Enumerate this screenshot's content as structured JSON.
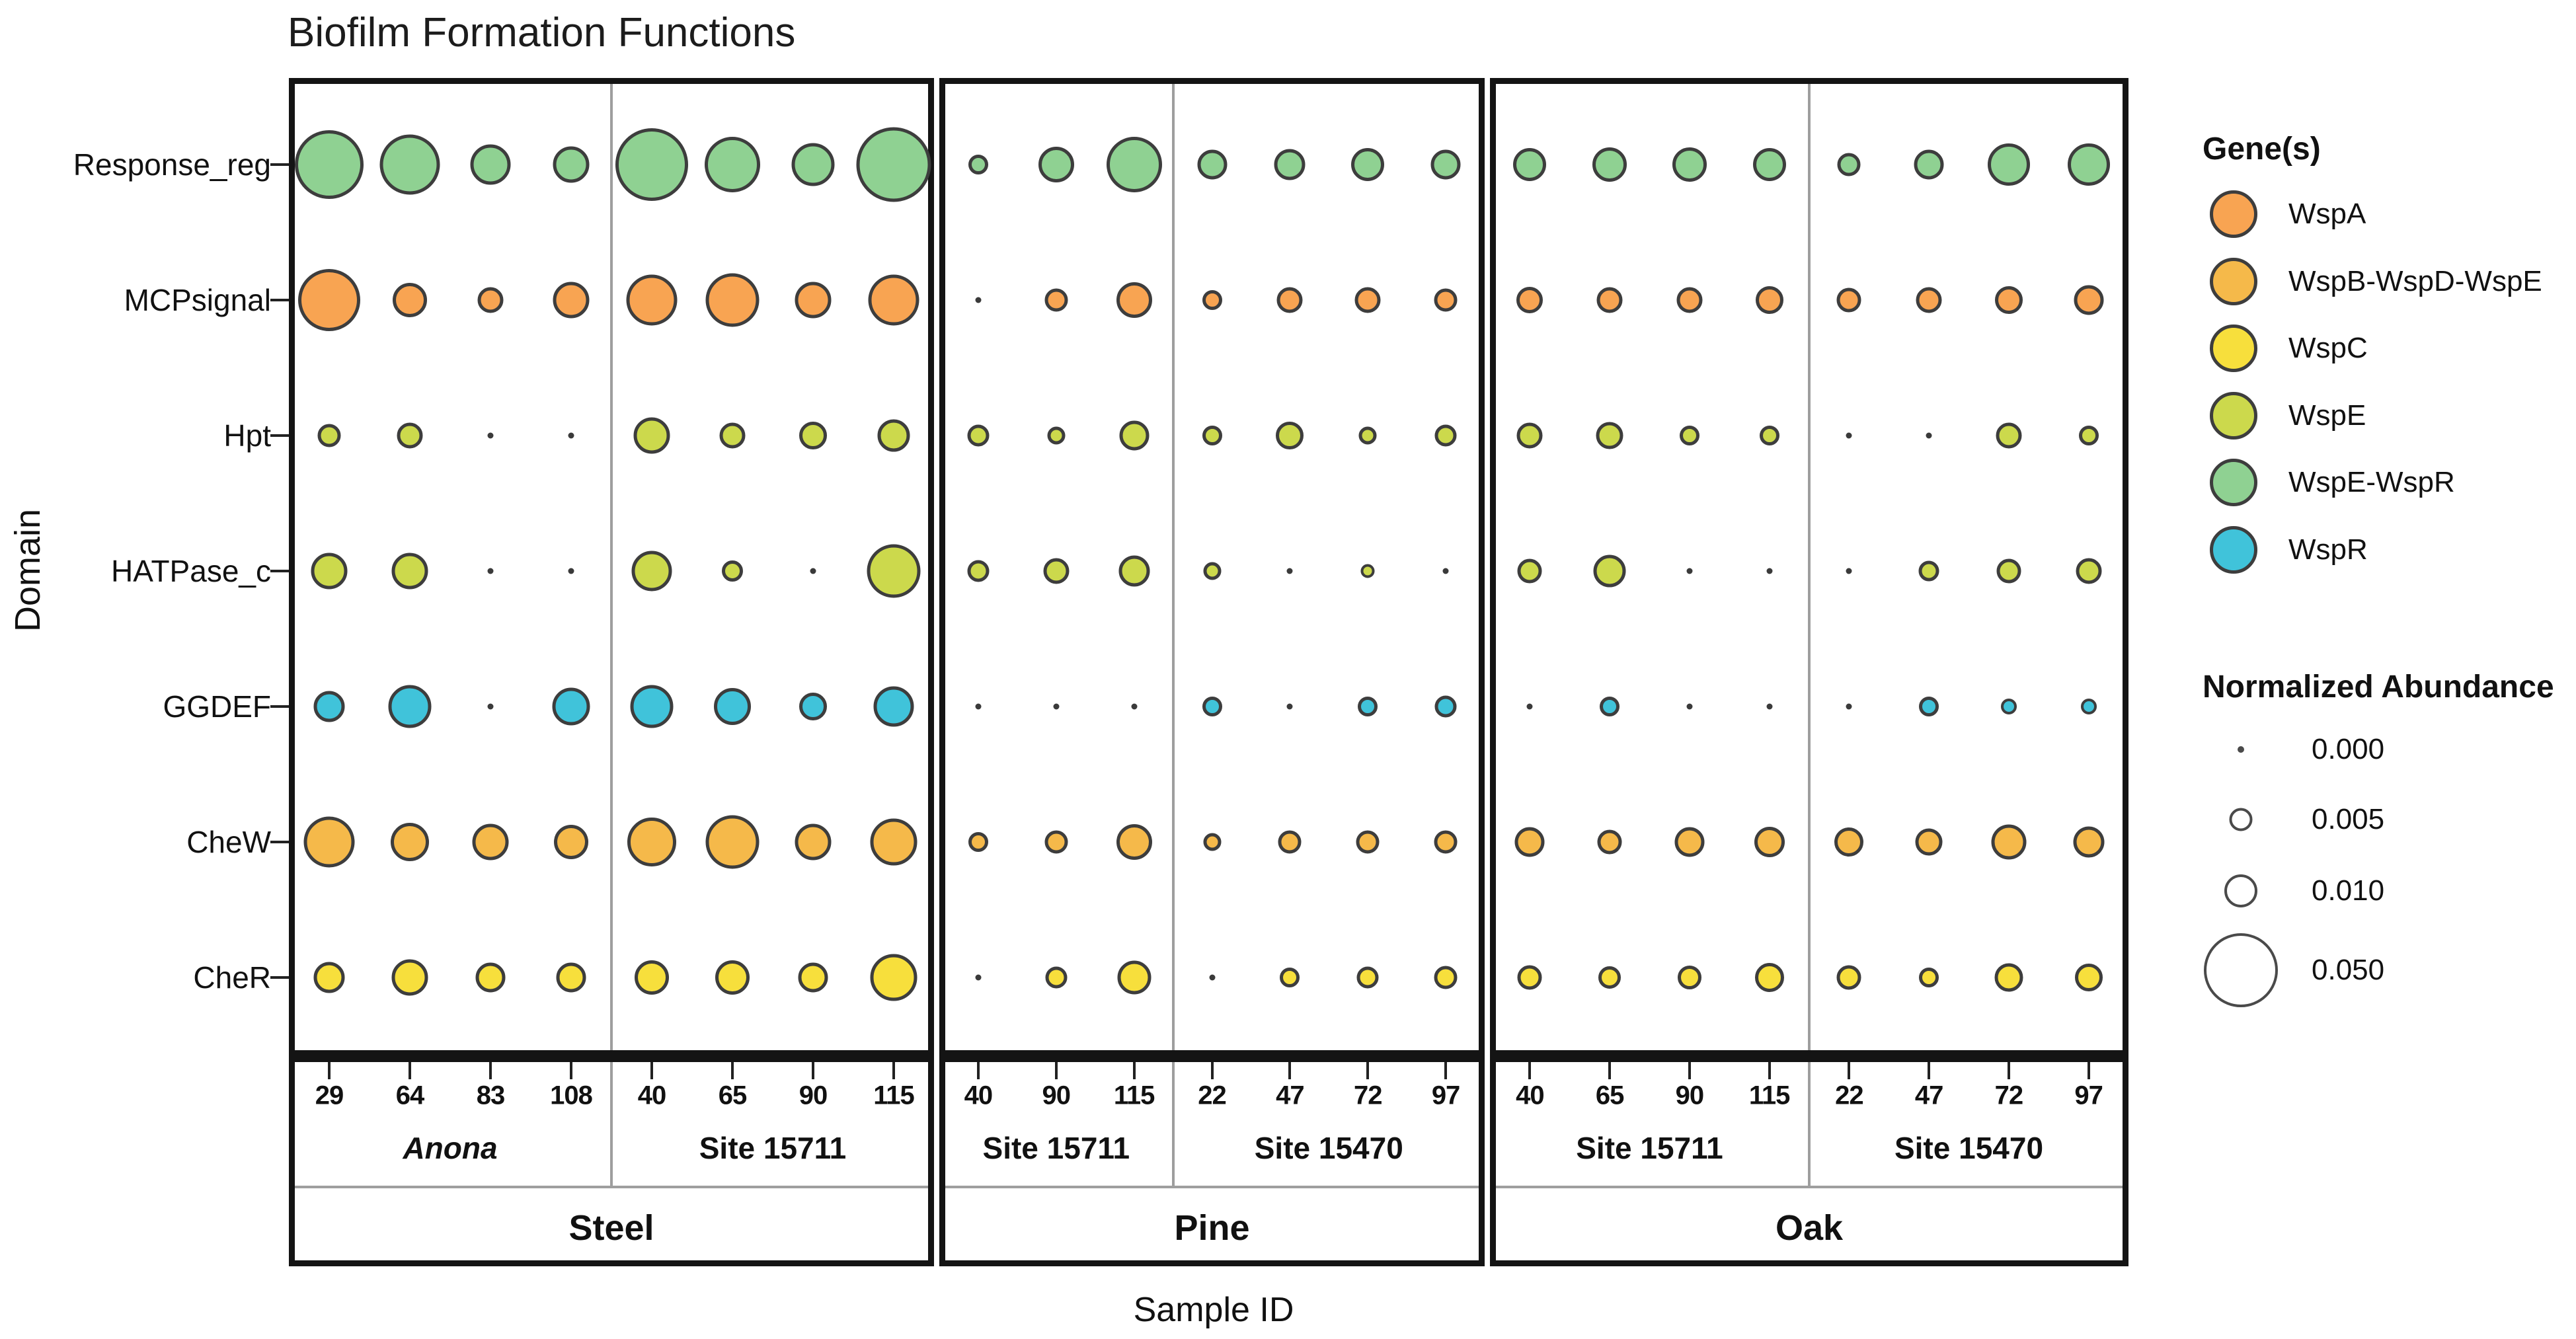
{
  "title": "Biofilm Formation Functions",
  "y_axis_title": "Domain",
  "x_axis_title": "Sample ID",
  "legend_genes": {
    "title": "Gene(s)",
    "items": [
      {
        "label": "WspA",
        "color": "#F8A452"
      },
      {
        "label": "WspB-WspD-WspE",
        "color": "#F5B94A"
      },
      {
        "label": "WspC",
        "color": "#F7DF3C"
      },
      {
        "label": "WspE",
        "color": "#CCD94C"
      },
      {
        "label": "WspE-WspR",
        "color": "#8FD192"
      },
      {
        "label": "WspR",
        "color": "#40C3DA"
      }
    ]
  },
  "legend_size": {
    "title": "Normalized Abundance",
    "items": [
      {
        "label": "0.000",
        "value": 0.0
      },
      {
        "label": "0.005",
        "value": 0.005
      },
      {
        "label": "0.010",
        "value": 0.01
      },
      {
        "label": "0.050",
        "value": 0.05
      }
    ]
  },
  "colors": {
    "bubble_stroke": "#3d3d3d",
    "panel_border": "#141414",
    "divider": "#9e9e9e"
  },
  "chart_data": {
    "type": "bubble",
    "title": "Biofilm Formation Functions",
    "xlabel": "Sample ID",
    "ylabel": "Domain",
    "size_legend": {
      "label": "Normalized Abundance",
      "breaks": [
        0.0,
        0.005,
        0.01,
        0.05
      ]
    },
    "y_categories": [
      "Response_reg",
      "MCPsignal",
      "Hpt",
      "HATPase_c",
      "GGDEF",
      "CheW",
      "CheR"
    ],
    "row_gene": {
      "Response_reg": "WspE-WspR",
      "MCPsignal": "WspA",
      "Hpt": "WspE",
      "HATPase_c": "WspE",
      "GGDEF": "WspR",
      "CheW": "WspB-WspD-WspE",
      "CheR": "WspC"
    },
    "panels": [
      {
        "name": "steel",
        "label": "Steel",
        "columns": [
          "29",
          "64",
          "83",
          "108",
          "40",
          "65",
          "90",
          "115"
        ],
        "groups": [
          {
            "label": "Anona",
            "italic": true,
            "n_cols": 4
          },
          {
            "label": "Site 15711",
            "italic": false,
            "n_cols": 4
          }
        ],
        "values": {
          "Response_reg": [
            0.043,
            0.033,
            0.015,
            0.012,
            0.048,
            0.028,
            0.017,
            0.051
          ],
          "MCPsignal": [
            0.035,
            0.011,
            0.006,
            0.012,
            0.024,
            0.026,
            0.012,
            0.024
          ],
          "Hpt": [
            0.005,
            0.006,
            0.0,
            0.0,
            0.012,
            0.006,
            0.007,
            0.0095
          ],
          "HATPase_c": [
            0.012,
            0.012,
            0.0,
            0.0,
            0.015,
            0.004,
            0.0,
            0.026
          ],
          "GGDEF": [
            0.009,
            0.017,
            0.0,
            0.013,
            0.017,
            0.0125,
            0.007,
            0.015
          ],
          "CheW": [
            0.024,
            0.0135,
            0.012,
            0.011,
            0.022,
            0.026,
            0.012,
            0.02
          ],
          "CheR": [
            0.009,
            0.012,
            0.008,
            0.008,
            0.011,
            0.011,
            0.008,
            0.02
          ]
        }
      },
      {
        "name": "pine",
        "label": "Pine",
        "columns": [
          "40",
          "90",
          "115",
          "22",
          "47",
          "72",
          "97"
        ],
        "groups": [
          {
            "label": "Site 15711",
            "italic": false,
            "n_cols": 3
          },
          {
            "label": "Site 15470",
            "italic": false,
            "n_cols": 4
          }
        ],
        "values": {
          "Response_reg": [
            0.0036,
            0.0115,
            0.028,
            0.008,
            0.009,
            0.01,
            0.008
          ],
          "MCPsignal": [
            0.0,
            0.0048,
            0.0115,
            0.0036,
            0.006,
            0.006,
            0.005
          ],
          "Hpt": [
            0.0043,
            0.0029,
            0.008,
            0.0036,
            0.007,
            0.0029,
            0.0043
          ],
          "HATPase_c": [
            0.0043,
            0.006,
            0.009,
            0.0029,
            0.0,
            0.0018,
            0.0
          ],
          "GGDEF": [
            0.0,
            0.0,
            0.0,
            0.0036,
            0.0,
            0.0036,
            0.0043
          ],
          "CheW": [
            0.0036,
            0.005,
            0.0115,
            0.0029,
            0.005,
            0.005,
            0.005
          ],
          "CheR": [
            0.0,
            0.0043,
            0.0103,
            0.0,
            0.0036,
            0.0043,
            0.005
          ]
        }
      },
      {
        "name": "oak",
        "label": "Oak",
        "columns": [
          "40",
          "65",
          "90",
          "115",
          "22",
          "47",
          "72",
          "97"
        ],
        "groups": [
          {
            "label": "Site 15711",
            "italic": false,
            "n_cols": 4
          },
          {
            "label": "Site 15470",
            "italic": false,
            "n_cols": 4
          }
        ],
        "values": {
          "Response_reg": [
            0.01,
            0.011,
            0.011,
            0.01,
            0.005,
            0.008,
            0.0166,
            0.0166
          ],
          "MCPsignal": [
            0.0064,
            0.006,
            0.006,
            0.007,
            0.0056,
            0.006,
            0.007,
            0.008
          ],
          "Hpt": [
            0.006,
            0.0068,
            0.0035,
            0.0036,
            0.0,
            0.0,
            0.006,
            0.0036
          ],
          "HATPase_c": [
            0.0056,
            0.0097,
            0.0,
            0.0,
            0.0,
            0.0038,
            0.0054,
            0.006
          ],
          "GGDEF": [
            0.0,
            0.0037,
            0.0,
            0.0,
            0.0,
            0.0035,
            0.0023,
            0.0023
          ],
          "CheW": [
            0.0082,
            0.0056,
            0.0082,
            0.0086,
            0.0077,
            0.0066,
            0.0112,
            0.0089
          ],
          "CheR": [
            0.0056,
            0.0047,
            0.0052,
            0.0077,
            0.0056,
            0.0036,
            0.0074,
            0.0071
          ]
        }
      }
    ]
  }
}
